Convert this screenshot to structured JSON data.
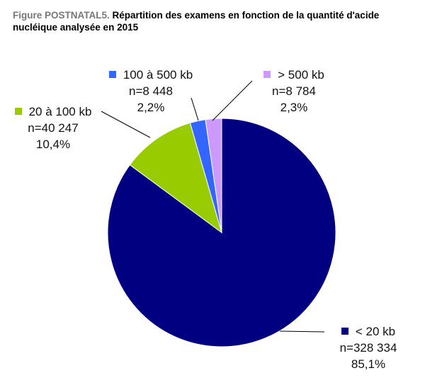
{
  "title": {
    "prefix": "Figure POSTNATAL5.",
    "text": "Répartition des examens en fonction de la quantité d'acide nucléique analysée en 2015"
  },
  "chart_data": {
    "type": "pie",
    "start_angle": "12 o'clock",
    "direction": "clockwise",
    "categories": [
      "< 20 kb",
      "20 à 100 kb",
      "100 à 500 kb",
      "> 500 kb"
    ],
    "values": [
      328334,
      40247,
      8448,
      8784
    ],
    "value_labels": [
      "n=328 334",
      "n=40 247",
      "n=8 448",
      "n=8 784"
    ],
    "percent_labels": [
      "85,1%",
      "10,4%",
      "2,2%",
      "2,3%"
    ],
    "percents": [
      85.1,
      10.4,
      2.2,
      2.3
    ],
    "colors": [
      "#000080",
      "#99cc00",
      "#3366ff",
      "#cc99ff"
    ]
  }
}
